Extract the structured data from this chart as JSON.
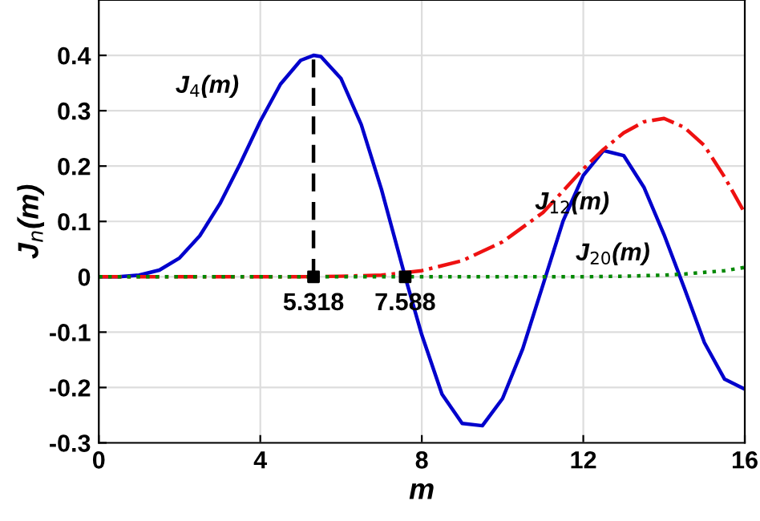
{
  "chart_data": {
    "type": "line",
    "xlabel": "m",
    "ylabel": "J$_{n}$(m)",
    "xlim": [
      0,
      16
    ],
    "ylim": [
      -0.3,
      0.5
    ],
    "xticks": [
      0,
      4,
      8,
      12,
      16
    ],
    "yticks": [
      -0.3,
      -0.2,
      -0.1,
      0,
      0.1,
      0.2,
      0.3,
      0.4
    ],
    "grid": true,
    "annotations": [
      {
        "text": "5.318",
        "x": 5.318,
        "y": 0
      },
      {
        "text": "7.588",
        "x": 7.588,
        "y": 0
      }
    ],
    "series": [
      {
        "name": "J$_{4}$(m)",
        "color": "#0000cc",
        "line_style": "solid",
        "x": [
          0,
          0.5,
          1,
          1.5,
          2,
          2.5,
          3,
          3.5,
          4,
          4.5,
          5,
          5.318,
          5.5,
          6,
          6.5,
          7,
          7.588,
          8,
          8.5,
          9,
          9.5,
          10,
          10.5,
          11,
          11.5,
          12,
          12.5,
          13,
          13.5,
          14,
          14.5,
          15,
          15.5,
          16
        ],
        "values": [
          0,
          0,
          0.003,
          0.012,
          0.034,
          0.074,
          0.132,
          0.204,
          0.281,
          0.348,
          0.391,
          0.4,
          0.398,
          0.358,
          0.275,
          0.158,
          0,
          -0.105,
          -0.212,
          -0.265,
          -0.269,
          -0.22,
          -0.13,
          -0.015,
          0.101,
          0.183,
          0.228,
          0.219,
          0.162,
          0.076,
          -0.02,
          -0.119,
          -0.185,
          -0.203
        ]
      },
      {
        "name": "J$_{12}$(m)",
        "color": "#ee1111",
        "line_style": "dashdot",
        "x": [
          0,
          5,
          6,
          7,
          8,
          9,
          10,
          11,
          11.5,
          12,
          12.5,
          13,
          13.5,
          14,
          14.5,
          15,
          15.5,
          16
        ],
        "values": [
          0,
          0,
          0.001,
          0.003,
          0.011,
          0.029,
          0.063,
          0.116,
          0.155,
          0.195,
          0.23,
          0.26,
          0.28,
          0.286,
          0.27,
          0.237,
          0.18,
          0.115
        ]
      },
      {
        "name": "J$_{20}$(m)",
        "color": "#008800",
        "line_style": "dotted",
        "x": [
          0,
          10,
          11,
          12,
          13,
          14,
          14.5,
          15,
          15.5,
          16
        ],
        "values": [
          0,
          0,
          0,
          0,
          0.001,
          0.003,
          0.005,
          0.008,
          0.011,
          0.017
        ]
      },
      {
        "type": "line",
        "color": "#000000",
        "line_style": "dashed",
        "x": [
          5.318,
          5.318
        ],
        "values": [
          0,
          0.4
        ]
      },
      {
        "type": "scatter",
        "color": "#000000",
        "marker": "square",
        "x": [
          5.318,
          7.588
        ],
        "values": [
          0,
          0
        ]
      }
    ]
  }
}
